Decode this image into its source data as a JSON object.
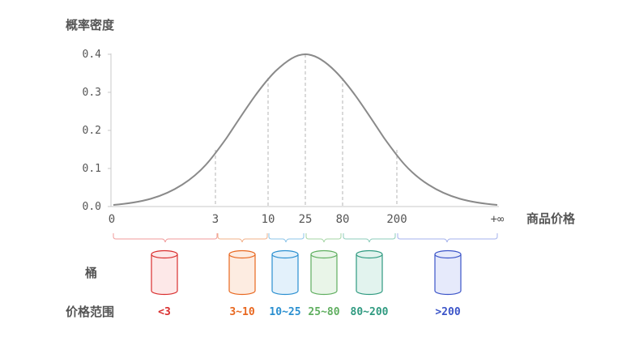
{
  "y_axis_title": "概率密度",
  "x_axis_title": "商品价格",
  "y_ticks": [
    "0.0",
    "0.1",
    "0.2",
    "0.3",
    "0.4"
  ],
  "x_ticks": [
    "0",
    "3",
    "10",
    "25",
    "80",
    "200",
    "+∞"
  ],
  "row_label_bucket": "桶",
  "row_label_range": "价格范围",
  "buckets": [
    {
      "range": "<3",
      "color": "#d92e2e",
      "fill": "#fde8e8"
    },
    {
      "range": "3~10",
      "color": "#e8671f",
      "fill": "#fdece1"
    },
    {
      "range": "10~25",
      "color": "#2a8fd0",
      "fill": "#e3f1fb"
    },
    {
      "range": "25~80",
      "color": "#5fae5f",
      "fill": "#e9f5e8"
    },
    {
      "range": "80~200",
      "color": "#2f9a80",
      "fill": "#e2f3ee"
    },
    {
      "range": ">200",
      "color": "#3b54c8",
      "fill": "#e6eafb"
    }
  ],
  "colors": {
    "curve": "#8a8a8a",
    "axis": "#c8c8c8",
    "text": "#555555",
    "title": "#444444"
  }
}
